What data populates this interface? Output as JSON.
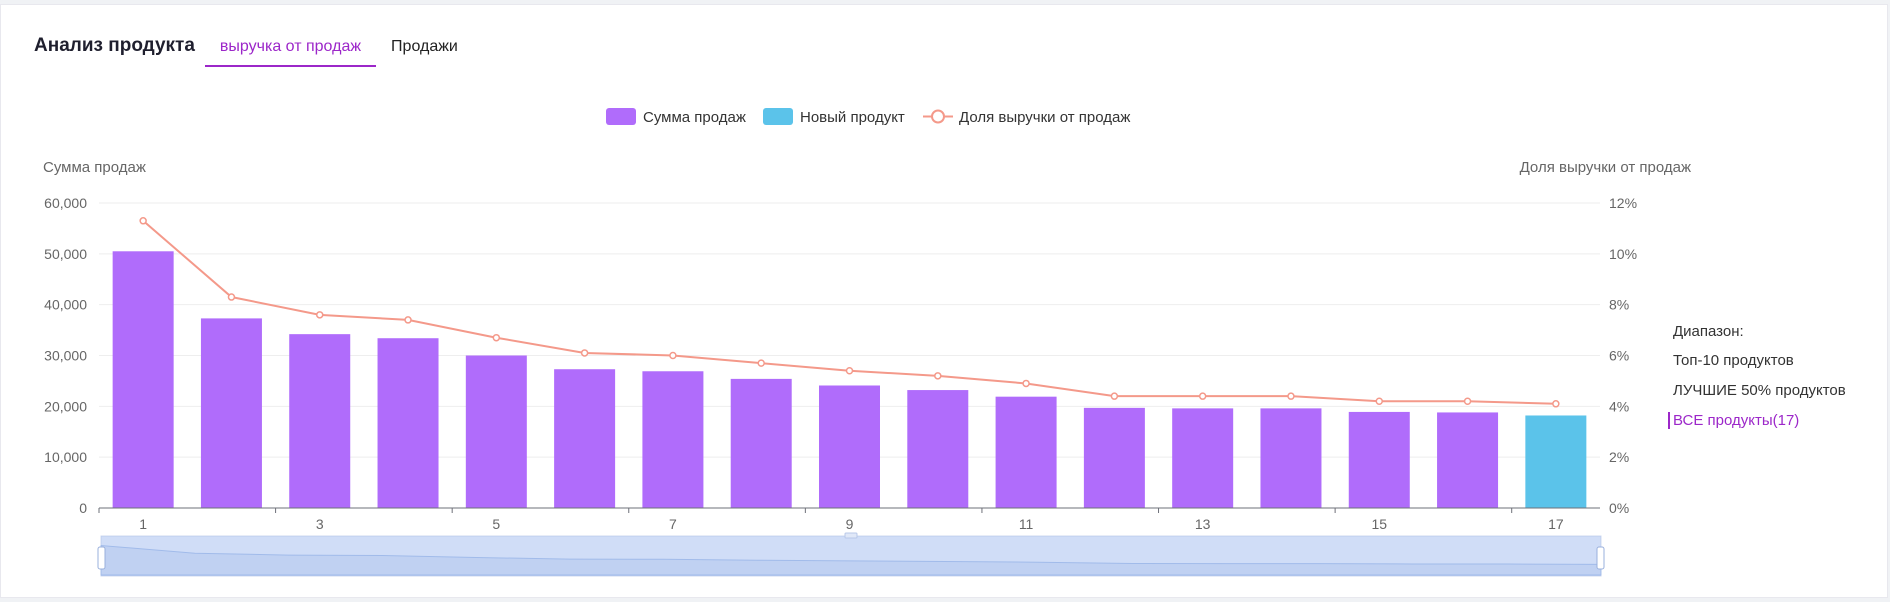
{
  "header": {
    "title": "Анализ продукта",
    "tabs": [
      {
        "label": "выручка от продаж",
        "active": true
      },
      {
        "label": "Продажи",
        "active": false
      }
    ]
  },
  "colors": {
    "bar": "#b06cfb",
    "new_bar": "#5bc3ea",
    "line": "#f4998a",
    "accent": "#9c27c9"
  },
  "range_panel": {
    "title": "Диапазон:",
    "options": [
      {
        "label": "Топ-10 продуктов",
        "active": false
      },
      {
        "label": "ЛУЧШИЕ 50% продуктов",
        "active": false
      },
      {
        "label": "ВСЕ продукты(17)",
        "active": true
      }
    ]
  },
  "chart_data": {
    "type": "bar",
    "legend": [
      "Сумма продаж",
      "Новый продукт",
      "Доля выручки от продаж"
    ],
    "legend_position": "top-center",
    "ylabel": "Сумма продаж",
    "y2label": "Доля выручки от продаж",
    "ylim": [
      0,
      60000
    ],
    "y2lim": [
      0,
      12
    ],
    "y_ticks": [
      "0",
      "10,000",
      "20,000",
      "30,000",
      "40,000",
      "50,000",
      "60,000"
    ],
    "y2_ticks": [
      "0%",
      "2%",
      "4%",
      "6%",
      "8%",
      "10%",
      "12%"
    ],
    "x_tick_labels": [
      "1",
      "3",
      "5",
      "7",
      "9",
      "11",
      "13",
      "15",
      "17"
    ],
    "grid": true,
    "categories": [
      "1",
      "2",
      "3",
      "4",
      "5",
      "6",
      "7",
      "8",
      "9",
      "10",
      "11",
      "12",
      "13",
      "14",
      "15",
      "16",
      "17"
    ],
    "series": [
      {
        "name": "Сумма продаж",
        "kind": "bar",
        "values": [
          50500,
          37300,
          34200,
          33400,
          30000,
          27300,
          26900,
          25400,
          24100,
          23200,
          21900,
          19700,
          19600,
          19600,
          18900,
          18800,
          18200
        ]
      },
      {
        "name": "Новый продукт",
        "kind": "bar",
        "category_index": 16
      },
      {
        "name": "Доля выручки от продаж",
        "kind": "line",
        "axis": "right",
        "values": [
          11.3,
          8.3,
          7.6,
          7.4,
          6.7,
          6.1,
          6.0,
          5.7,
          5.4,
          5.2,
          4.9,
          4.4,
          4.4,
          4.4,
          4.2,
          4.2,
          4.1
        ]
      }
    ],
    "new_product_index": 16
  }
}
